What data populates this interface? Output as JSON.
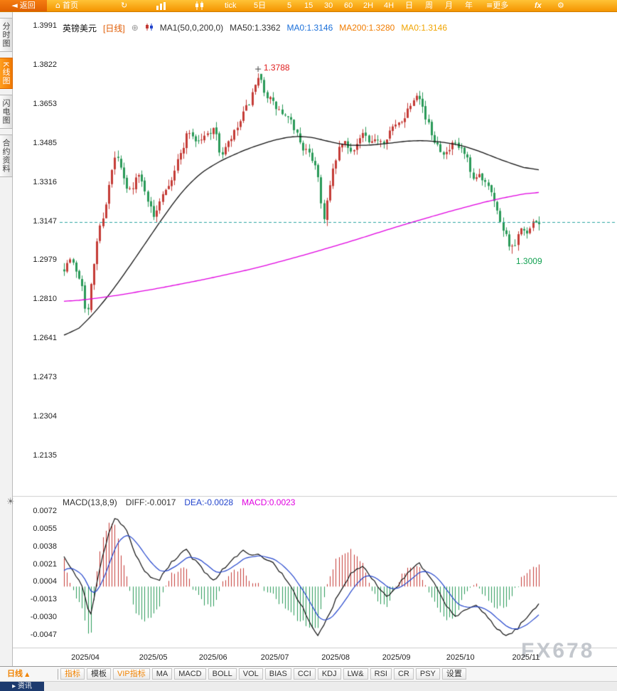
{
  "toolbar": {
    "back": "返回",
    "home": "首页",
    "periods": [
      "tick",
      "5日",
      "5",
      "15",
      "30",
      "60",
      "2H",
      "4H",
      "日",
      "周",
      "月",
      "年"
    ],
    "more": "更多",
    "fx": "fx"
  },
  "sidebar": {
    "tabs": [
      "分时图",
      "K线图",
      "闪电图",
      "合约资料"
    ],
    "active_index": 1
  },
  "chart_header": {
    "symbol": "英镑美元",
    "period": "[日线]",
    "ma_settings": "MA1(50,0,200,0)",
    "ma50": "MA50:1.3362",
    "ma0_blue": "MA0:1.3146",
    "ma200": "MA200:1.3280",
    "ma0_orange": "MA0:1.3146"
  },
  "macd_header": {
    "title": "MACD(13,8,9)",
    "diff": "DIFF:-0.0017",
    "dea": "DEA:-0.0028",
    "macd": "MACD:0.0023"
  },
  "annotations": {
    "high": "1.3788",
    "low": "1.3009"
  },
  "bottom_tabs": {
    "period": "日线",
    "tabs": [
      "指标",
      "模板",
      "VIP指标",
      "MA",
      "MACD",
      "BOLL",
      "VOL",
      "BIAS",
      "CCI",
      "KDJ",
      "LW&",
      "RSI",
      "CR",
      "PSY",
      "设置"
    ]
  },
  "bottom_bar": {
    "label": "资讯"
  },
  "watermark": "FX678",
  "chart_data": {
    "type": "candlestick",
    "symbol": "英镑美元 (GBP/USD)",
    "timeframe": "日线",
    "y_axis": [
      "1.3991",
      "1.3822",
      "1.3653",
      "1.3485",
      "1.3316",
      "1.3147",
      "1.2979",
      "1.2810",
      "1.2641",
      "1.2473",
      "1.2304",
      "1.2135"
    ],
    "macd_axis": [
      "0.0072",
      "0.0055",
      "0.0038",
      "0.0021",
      "0.0004",
      "-0.0013",
      "-0.0030",
      "-0.0047"
    ],
    "x_labels": [
      {
        "text": "2025/04",
        "f": 0.045
      },
      {
        "text": "2025/05",
        "f": 0.188
      },
      {
        "text": "2025/06",
        "f": 0.314
      },
      {
        "text": "2025/07",
        "f": 0.444
      },
      {
        "text": "2025/08",
        "f": 0.572
      },
      {
        "text": "2025/09",
        "f": 0.7
      },
      {
        "text": "2025/10",
        "f": 0.835
      },
      {
        "text": "2025/11",
        "f": 0.973
      }
    ],
    "current_price": 1.3147,
    "high_annotation": {
      "price": 1.3788,
      "f": 0.41
    },
    "low_annotation": {
      "price": 1.3009,
      "f": 0.946
    },
    "candle_count": 160,
    "seed": 7,
    "close_path": [
      [
        0.0,
        1.295
      ],
      [
        0.012,
        1.2985
      ],
      [
        0.025,
        1.294
      ],
      [
        0.038,
        1.288
      ],
      [
        0.048,
        1.2725
      ],
      [
        0.058,
        1.289
      ],
      [
        0.07,
        1.308
      ],
      [
        0.085,
        1.32
      ],
      [
        0.1,
        1.336
      ],
      [
        0.11,
        1.3445
      ],
      [
        0.122,
        1.335
      ],
      [
        0.135,
        1.327
      ],
      [
        0.155,
        1.335
      ],
      [
        0.17,
        1.329
      ],
      [
        0.188,
        1.316
      ],
      [
        0.205,
        1.327
      ],
      [
        0.225,
        1.333
      ],
      [
        0.245,
        1.344
      ],
      [
        0.262,
        1.3545
      ],
      [
        0.28,
        1.349
      ],
      [
        0.3,
        1.352
      ],
      [
        0.315,
        1.356
      ],
      [
        0.33,
        1.343
      ],
      [
        0.345,
        1.348
      ],
      [
        0.362,
        1.354
      ],
      [
        0.38,
        1.362
      ],
      [
        0.398,
        1.37
      ],
      [
        0.41,
        1.3775
      ],
      [
        0.425,
        1.37
      ],
      [
        0.442,
        1.365
      ],
      [
        0.462,
        1.3605
      ],
      [
        0.482,
        1.3565
      ],
      [
        0.502,
        1.347
      ],
      [
        0.517,
        1.343
      ],
      [
        0.532,
        1.339
      ],
      [
        0.545,
        1.315
      ],
      [
        0.558,
        1.328
      ],
      [
        0.572,
        1.342
      ],
      [
        0.588,
        1.35
      ],
      [
        0.6,
        1.345
      ],
      [
        0.615,
        1.348
      ],
      [
        0.63,
        1.353
      ],
      [
        0.645,
        1.347
      ],
      [
        0.66,
        1.351
      ],
      [
        0.672,
        1.3495
      ],
      [
        0.685,
        1.354
      ],
      [
        0.7,
        1.356
      ],
      [
        0.715,
        1.36
      ],
      [
        0.73,
        1.366
      ],
      [
        0.745,
        1.372
      ],
      [
        0.76,
        1.36
      ],
      [
        0.775,
        1.352
      ],
      [
        0.79,
        1.347
      ],
      [
        0.805,
        1.344
      ],
      [
        0.82,
        1.348
      ],
      [
        0.835,
        1.346
      ],
      [
        0.848,
        1.342
      ],
      [
        0.86,
        1.331
      ],
      [
        0.872,
        1.335
      ],
      [
        0.885,
        1.333
      ],
      [
        0.898,
        1.33
      ],
      [
        0.91,
        1.32
      ],
      [
        0.925,
        1.312
      ],
      [
        0.938,
        1.305
      ],
      [
        0.946,
        1.302
      ],
      [
        0.96,
        1.311
      ],
      [
        0.975,
        1.309
      ],
      [
        0.988,
        1.3135
      ],
      [
        1.0,
        1.3145
      ]
    ],
    "ma50_path": [
      [
        0.0,
        1.263
      ],
      [
        0.04,
        1.27
      ],
      [
        0.08,
        1.279
      ],
      [
        0.12,
        1.29
      ],
      [
        0.16,
        1.302
      ],
      [
        0.19,
        1.311
      ],
      [
        0.23,
        1.323
      ],
      [
        0.27,
        1.333
      ],
      [
        0.31,
        1.339
      ],
      [
        0.36,
        1.344
      ],
      [
        0.41,
        1.348
      ],
      [
        0.46,
        1.351
      ],
      [
        0.5,
        1.352
      ],
      [
        0.54,
        1.3505
      ],
      [
        0.58,
        1.348
      ],
      [
        0.62,
        1.3475
      ],
      [
        0.66,
        1.348
      ],
      [
        0.7,
        1.349
      ],
      [
        0.74,
        1.35
      ],
      [
        0.78,
        1.3495
      ],
      [
        0.82,
        1.3485
      ],
      [
        0.86,
        1.3465
      ],
      [
        0.9,
        1.343
      ],
      [
        0.94,
        1.34
      ],
      [
        0.97,
        1.338
      ],
      [
        1.0,
        1.3362
      ]
    ],
    "ma200_path": [
      [
        0.0,
        1.28
      ],
      [
        0.1,
        1.2825
      ],
      [
        0.2,
        1.286
      ],
      [
        0.3,
        1.29
      ],
      [
        0.4,
        1.2945
      ],
      [
        0.5,
        1.3
      ],
      [
        0.6,
        1.306
      ],
      [
        0.7,
        1.3125
      ],
      [
        0.8,
        1.3185
      ],
      [
        0.9,
        1.324
      ],
      [
        1.0,
        1.328
      ]
    ],
    "macd": {
      "dea_alpha": 0.2,
      "dea_seed": 0.0012,
      "diff_path": [
        [
          0.0,
          0.0028
        ],
        [
          0.02,
          0.0015
        ],
        [
          0.04,
          0.0
        ],
        [
          0.055,
          -0.003
        ],
        [
          0.07,
          0.0005
        ],
        [
          0.09,
          0.0045
        ],
        [
          0.108,
          0.0066
        ],
        [
          0.13,
          0.0055
        ],
        [
          0.15,
          0.0032
        ],
        [
          0.175,
          0.0012
        ],
        [
          0.2,
          0.0006
        ],
        [
          0.225,
          0.0022
        ],
        [
          0.255,
          0.0036
        ],
        [
          0.285,
          0.002
        ],
        [
          0.315,
          0.0006
        ],
        [
          0.345,
          0.0022
        ],
        [
          0.378,
          0.0034
        ],
        [
          0.408,
          0.003
        ],
        [
          0.442,
          0.0022
        ],
        [
          0.472,
          0.0005
        ],
        [
          0.5,
          -0.0018
        ],
        [
          0.52,
          -0.0038
        ],
        [
          0.535,
          -0.0048
        ],
        [
          0.555,
          -0.003
        ],
        [
          0.58,
          -0.0005
        ],
        [
          0.608,
          0.0015
        ],
        [
          0.632,
          0.002
        ],
        [
          0.658,
          0.0002
        ],
        [
          0.68,
          -0.001
        ],
        [
          0.705,
          0.0002
        ],
        [
          0.728,
          0.0015
        ],
        [
          0.748,
          0.0022
        ],
        [
          0.772,
          0.0008
        ],
        [
          0.798,
          -0.0012
        ],
        [
          0.822,
          -0.003
        ],
        [
          0.845,
          -0.0022
        ],
        [
          0.865,
          -0.0018
        ],
        [
          0.89,
          -0.0028
        ],
        [
          0.912,
          -0.004
        ],
        [
          0.932,
          -0.0048
        ],
        [
          0.955,
          -0.004
        ],
        [
          0.978,
          -0.0028
        ],
        [
          1.0,
          -0.0017
        ]
      ]
    },
    "colors": {
      "up": "#c43b36",
      "down": "#2a9a58",
      "ma50": "#111111",
      "ma200": "#e000e0",
      "current": "#2aa5a0",
      "diff": "#111111",
      "dea": "#2244cc",
      "hist_up": "#c43b36",
      "hist_down": "#2a9a58"
    }
  }
}
